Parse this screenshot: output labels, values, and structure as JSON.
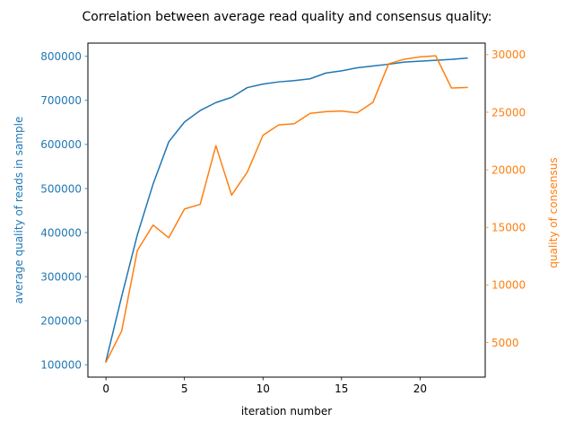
{
  "chart_data": {
    "type": "line",
    "title": "Correlation between average read quality and consensus quality:",
    "xlabel": "iteration number",
    "ylabel_left": "average quality of reads in sample",
    "ylabel_right": "quality of consensus",
    "xlim": [
      -1.15,
      24.15
    ],
    "ylim_left": [
      72000,
      830000
    ],
    "ylim_right": [
      2000,
      31000
    ],
    "x_ticks": [
      0,
      5,
      10,
      15,
      20
    ],
    "y_ticks_left": [
      100000,
      200000,
      300000,
      400000,
      500000,
      600000,
      700000,
      800000
    ],
    "y_ticks_right": [
      5000,
      10000,
      15000,
      20000,
      25000,
      30000
    ],
    "grid": false,
    "legend": "none",
    "x": [
      0,
      1,
      2,
      3,
      4,
      5,
      6,
      7,
      8,
      9,
      10,
      11,
      12,
      13,
      14,
      15,
      16,
      17,
      18,
      19,
      20,
      21,
      22,
      23
    ],
    "series": [
      {
        "axis": "left",
        "color": "#1f77b4",
        "values": [
          108000,
          255000,
          395000,
          510000,
          606000,
          651000,
          677000,
          695000,
          707000,
          729000,
          737000,
          742000,
          745000,
          749000,
          762000,
          767000,
          774000,
          778000,
          782000,
          787000,
          789000,
          791000,
          793000,
          796000
        ]
      },
      {
        "axis": "right",
        "color": "#ff7f0e",
        "values": [
          3300,
          6000,
          13000,
          15200,
          14100,
          16600,
          17000,
          22100,
          17800,
          19800,
          23000,
          23900,
          24000,
          24900,
          25050,
          25100,
          24950,
          25850,
          29200,
          29600,
          29800,
          29900,
          27100,
          27150
        ]
      }
    ]
  }
}
